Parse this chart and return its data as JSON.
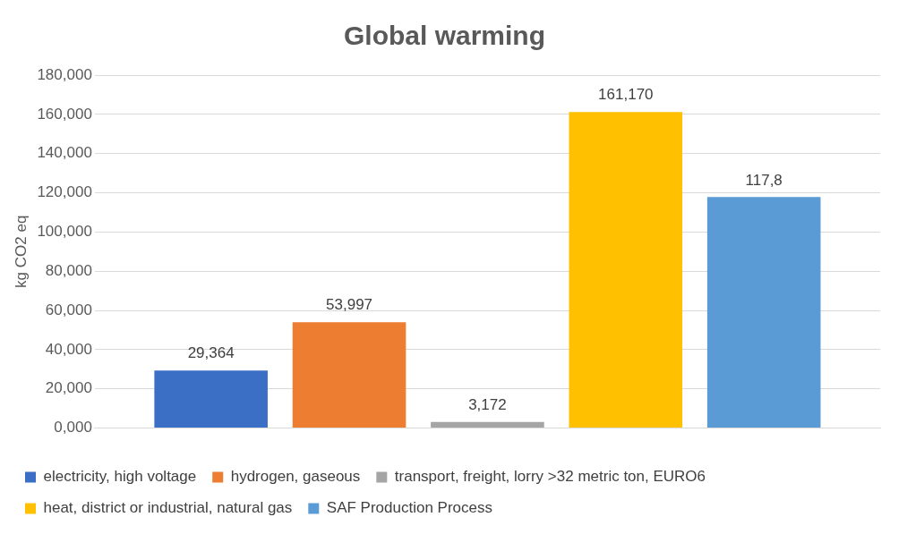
{
  "chart_data": {
    "type": "bar",
    "title": "Global warming",
    "ylabel": "kg CO2 eq",
    "categories": [
      null
    ],
    "series": [
      {
        "name": "electricity, high voltage",
        "color": "#3b6fc6",
        "values": [
          29.364
        ],
        "value_labels": [
          "29,364"
        ]
      },
      {
        "name": "hydrogen, gaseous",
        "color": "#ed7d31",
        "values": [
          53.997
        ],
        "value_labels": [
          "53,997"
        ]
      },
      {
        "name": "transport, freight, lorry >32 metric ton, EURO6",
        "color": "#a5a5a5",
        "values": [
          3.172
        ],
        "value_labels": [
          "3,172"
        ]
      },
      {
        "name": "heat, district or industrial, natural gas",
        "color": "#ffc000",
        "values": [
          161.17
        ],
        "value_labels": [
          "161,170"
        ]
      },
      {
        "name": "SAF Production Process",
        "color": "#5b9bd5",
        "values": [
          117.8
        ],
        "value_labels": [
          "117,8"
        ]
      }
    ],
    "ylim": [
      0,
      180
    ],
    "yticks": [
      {
        "value": 0,
        "label": "0,000"
      },
      {
        "value": 20,
        "label": "20,000"
      },
      {
        "value": 40,
        "label": "40,000"
      },
      {
        "value": 60,
        "label": "60,000"
      },
      {
        "value": 80,
        "label": "80,000"
      },
      {
        "value": 100,
        "label": "100,000"
      },
      {
        "value": 120,
        "label": "120,000"
      },
      {
        "value": 140,
        "label": "140,000"
      },
      {
        "value": 160,
        "label": "160,000"
      },
      {
        "value": 180,
        "label": "180,000"
      }
    ],
    "grid": "y",
    "legend": "bottom"
  }
}
